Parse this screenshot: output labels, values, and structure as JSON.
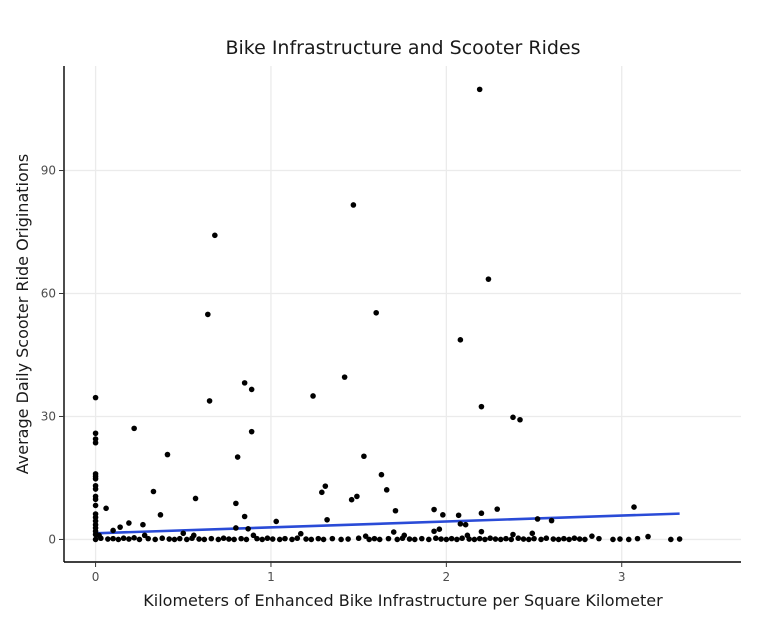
{
  "chart_data": {
    "type": "scatter",
    "title": "Bike Infrastructure and Scooter Rides",
    "xlabel": "Kilometers of Enhanced Bike Infrastructure per Square Kilometer",
    "ylabel": "Average Daily Scooter Ride Originations",
    "xlim": [
      -0.18,
      3.68
    ],
    "ylim": [
      -5.5,
      115.5
    ],
    "xticks": [
      0,
      1,
      2,
      3
    ],
    "yticks": [
      0,
      30,
      60,
      90
    ],
    "grid": true,
    "colors": {
      "points": "#000000",
      "trend": "#2a4bd7"
    },
    "trend_line": {
      "x": [
        0,
        3.33
      ],
      "y": [
        1.5,
        6.3
      ]
    },
    "points": [
      [
        2.19,
        109.8
      ],
      [
        1.47,
        81.6
      ],
      [
        0.68,
        74.2
      ],
      [
        2.24,
        63.5
      ],
      [
        0.64,
        54.9
      ],
      [
        1.6,
        55.3
      ],
      [
        2.08,
        48.7
      ],
      [
        1.42,
        39.6
      ],
      [
        0.85,
        38.2
      ],
      [
        0.89,
        36.6
      ],
      [
        0.0,
        34.6
      ],
      [
        1.24,
        35.0
      ],
      [
        0.65,
        33.8
      ],
      [
        2.2,
        32.4
      ],
      [
        2.38,
        29.8
      ],
      [
        2.42,
        29.2
      ],
      [
        0.22,
        27.1
      ],
      [
        0.89,
        26.3
      ],
      [
        0.0,
        25.9
      ],
      [
        0.0,
        24.5
      ],
      [
        0.0,
        23.6
      ],
      [
        0.41,
        20.7
      ],
      [
        0.81,
        20.1
      ],
      [
        1.53,
        20.3
      ],
      [
        0.0,
        16.0
      ],
      [
        0.0,
        15.4
      ],
      [
        0.0,
        14.8
      ],
      [
        1.63,
        15.8
      ],
      [
        0.0,
        13.1
      ],
      [
        1.31,
        13.0
      ],
      [
        0.0,
        12.3
      ],
      [
        1.66,
        12.1
      ],
      [
        0.33,
        11.7
      ],
      [
        1.29,
        11.5
      ],
      [
        0.0,
        10.5
      ],
      [
        0.0,
        9.8
      ],
      [
        0.57,
        10.0
      ],
      [
        1.49,
        10.5
      ],
      [
        1.46,
        9.7
      ],
      [
        0.8,
        8.8
      ],
      [
        0.0,
        8.3
      ],
      [
        0.06,
        7.6
      ],
      [
        1.71,
        7.0
      ],
      [
        1.93,
        7.3
      ],
      [
        3.07,
        7.9
      ],
      [
        2.29,
        7.4
      ],
      [
        0.37,
        6.0
      ],
      [
        0.85,
        5.6
      ],
      [
        2.07,
        5.9
      ],
      [
        1.98,
        6.0
      ],
      [
        2.2,
        6.4
      ],
      [
        0.0,
        6.2
      ],
      [
        0.0,
        5.4
      ],
      [
        1.32,
        4.8
      ],
      [
        2.52,
        5.0
      ],
      [
        2.6,
        4.6
      ],
      [
        0.0,
        4.5
      ],
      [
        1.03,
        4.4
      ],
      [
        0.19,
        4.0
      ],
      [
        0.27,
        3.6
      ],
      [
        2.08,
        3.8
      ],
      [
        2.11,
        3.6
      ],
      [
        0.0,
        3.6
      ],
      [
        0.14,
        3.0
      ],
      [
        0.0,
        2.8
      ],
      [
        0.8,
        2.8
      ],
      [
        0.87,
        2.6
      ],
      [
        1.96,
        2.5
      ],
      [
        1.93,
        2.0
      ],
      [
        0.1,
        2.2
      ],
      [
        0.0,
        2.0
      ],
      [
        1.7,
        1.8
      ],
      [
        2.2,
        1.9
      ],
      [
        0.5,
        1.5
      ],
      [
        1.17,
        1.4
      ],
      [
        2.49,
        1.5
      ],
      [
        0.0,
        1.2
      ],
      [
        0.02,
        1.0
      ],
      [
        0.28,
        1.0
      ],
      [
        0.56,
        1.0
      ],
      [
        0.9,
        1.0
      ],
      [
        1.54,
        0.8
      ],
      [
        1.76,
        1.0
      ],
      [
        2.12,
        1.0
      ],
      [
        2.38,
        1.2
      ],
      [
        2.83,
        0.8
      ],
      [
        3.15,
        0.7
      ],
      [
        0.0,
        0.0
      ],
      [
        0.03,
        0.3
      ],
      [
        0.07,
        0.1
      ],
      [
        0.1,
        0.2
      ],
      [
        0.13,
        0.0
      ],
      [
        0.16,
        0.3
      ],
      [
        0.19,
        0.1
      ],
      [
        0.22,
        0.4
      ],
      [
        0.25,
        0.0
      ],
      [
        0.3,
        0.2
      ],
      [
        0.34,
        0.0
      ],
      [
        0.38,
        0.3
      ],
      [
        0.42,
        0.1
      ],
      [
        0.45,
        0.0
      ],
      [
        0.48,
        0.2
      ],
      [
        0.52,
        0.0
      ],
      [
        0.55,
        0.3
      ],
      [
        0.59,
        0.1
      ],
      [
        0.62,
        0.0
      ],
      [
        0.66,
        0.2
      ],
      [
        0.7,
        0.0
      ],
      [
        0.73,
        0.3
      ],
      [
        0.76,
        0.1
      ],
      [
        0.79,
        0.0
      ],
      [
        0.83,
        0.2
      ],
      [
        0.86,
        0.0
      ],
      [
        0.92,
        0.2
      ],
      [
        0.95,
        0.0
      ],
      [
        0.98,
        0.3
      ],
      [
        1.01,
        0.1
      ],
      [
        1.05,
        0.0
      ],
      [
        1.08,
        0.2
      ],
      [
        1.12,
        0.0
      ],
      [
        1.15,
        0.3
      ],
      [
        1.2,
        0.1
      ],
      [
        1.23,
        0.0
      ],
      [
        1.27,
        0.2
      ],
      [
        1.3,
        0.0
      ],
      [
        1.35,
        0.2
      ],
      [
        1.4,
        0.0
      ],
      [
        1.44,
        0.1
      ],
      [
        1.5,
        0.3
      ],
      [
        1.56,
        0.0
      ],
      [
        1.59,
        0.2
      ],
      [
        1.62,
        0.0
      ],
      [
        1.67,
        0.2
      ],
      [
        1.72,
        0.0
      ],
      [
        1.75,
        0.3
      ],
      [
        1.79,
        0.1
      ],
      [
        1.82,
        0.0
      ],
      [
        1.86,
        0.2
      ],
      [
        1.9,
        0.0
      ],
      [
        1.94,
        0.3
      ],
      [
        1.97,
        0.1
      ],
      [
        2.0,
        0.0
      ],
      [
        2.03,
        0.2
      ],
      [
        2.06,
        0.0
      ],
      [
        2.09,
        0.3
      ],
      [
        2.13,
        0.1
      ],
      [
        2.16,
        0.0
      ],
      [
        2.19,
        0.2
      ],
      [
        2.22,
        0.0
      ],
      [
        2.25,
        0.3
      ],
      [
        2.28,
        0.1
      ],
      [
        2.31,
        0.0
      ],
      [
        2.34,
        0.2
      ],
      [
        2.37,
        0.0
      ],
      [
        2.41,
        0.3
      ],
      [
        2.44,
        0.1
      ],
      [
        2.47,
        0.0
      ],
      [
        2.5,
        0.2
      ],
      [
        2.54,
        0.0
      ],
      [
        2.57,
        0.3
      ],
      [
        2.61,
        0.1
      ],
      [
        2.64,
        0.0
      ],
      [
        2.67,
        0.2
      ],
      [
        2.7,
        0.0
      ],
      [
        2.73,
        0.3
      ],
      [
        2.76,
        0.1
      ],
      [
        2.79,
        0.0
      ],
      [
        2.87,
        0.2
      ],
      [
        2.95,
        0.0
      ],
      [
        2.99,
        0.1
      ],
      [
        3.04,
        0.0
      ],
      [
        3.09,
        0.2
      ],
      [
        3.28,
        0.0
      ],
      [
        3.33,
        0.1
      ]
    ]
  }
}
